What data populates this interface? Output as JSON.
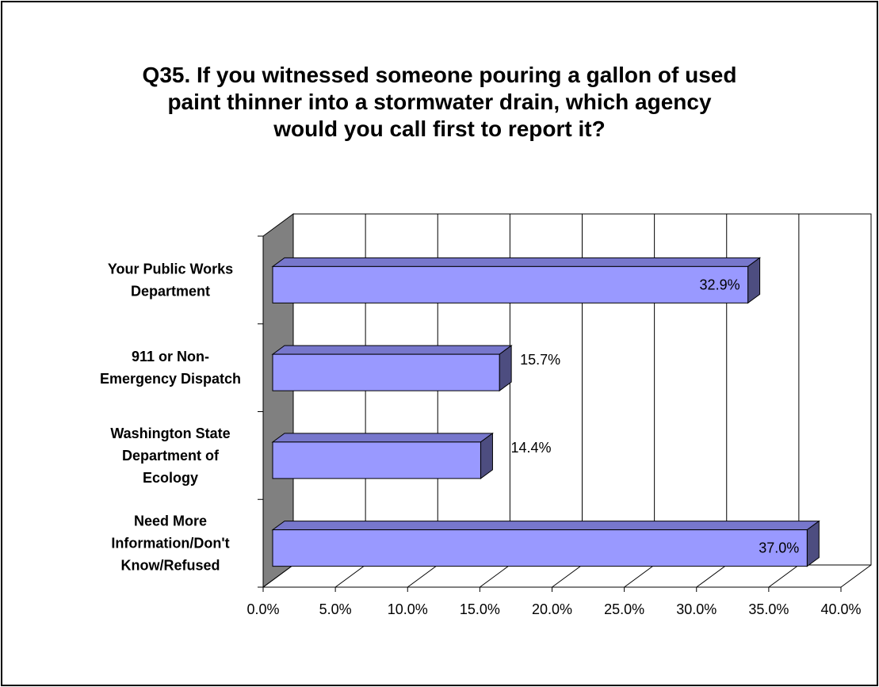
{
  "chart_data": {
    "type": "bar",
    "orientation": "horizontal",
    "three_d": true,
    "title_lines": [
      "Q35. If you witnessed someone pouring a gallon of used",
      "paint thinner into a stormwater drain, which agency",
      "would you call first to report it?"
    ],
    "categories": [
      [
        "Your Public Works",
        "Department"
      ],
      [
        "911 or Non-",
        "Emergency Dispatch"
      ],
      [
        "Washington State",
        "Department of",
        "Ecology"
      ],
      [
        "Need More",
        "Information/Don't",
        "Know/Refused"
      ]
    ],
    "values": [
      32.9,
      15.7,
      14.4,
      37.0
    ],
    "data_labels": [
      "32.9%",
      "15.7%",
      "14.4%",
      "37.0%"
    ],
    "xlim": [
      0,
      40
    ],
    "x_ticks": [
      0,
      5,
      10,
      15,
      20,
      25,
      30,
      35,
      40
    ],
    "x_tick_labels": [
      "0.0%",
      "5.0%",
      "10.0%",
      "15.0%",
      "20.0%",
      "25.0%",
      "30.0%",
      "35.0%",
      "40.0%"
    ],
    "grid": true,
    "legend": "none",
    "colors": {
      "bar_front": "#9999FF",
      "bar_top": "#7777CC",
      "bar_side": "#4D4D80",
      "left_wall": "#808080",
      "grid": "#000000"
    }
  }
}
